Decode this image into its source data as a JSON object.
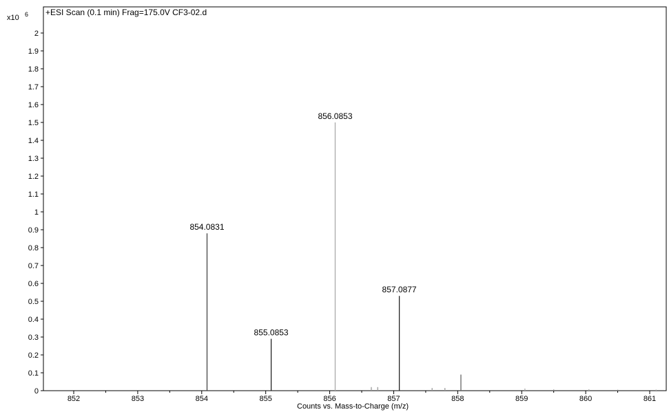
{
  "chart_data": {
    "type": "bar",
    "title": "+ESI Scan (0.1 min) Frag=175.0V CF3-02.d",
    "xlabel": "Counts vs. Mass-to-Charge (m/z)",
    "ylabel": "",
    "y_multiplier": "x10",
    "y_multiplier_exp": "6",
    "xlim": [
      851.5,
      861.4
    ],
    "ylim": [
      0,
      2.05
    ],
    "x_ticks": [
      852,
      853,
      854,
      855,
      856,
      857,
      858,
      859,
      860,
      861
    ],
    "y_ticks": [
      0,
      0.1,
      0.2,
      0.3,
      0.4,
      0.5,
      0.6,
      0.7,
      0.8,
      0.9,
      1,
      1.1,
      1.2,
      1.3,
      1.4,
      1.5,
      1.6,
      1.7,
      1.8,
      1.9,
      2
    ],
    "grid": false,
    "peaks": [
      {
        "mz": 854.0831,
        "value": 0.88,
        "label": "854.0831",
        "color": "#444444"
      },
      {
        "mz": 855.0853,
        "value": 0.29,
        "label": "855.0853",
        "color": "#222222"
      },
      {
        "mz": 856.0853,
        "value": 1.5,
        "label": "856.0853",
        "color": "#aaaaaa"
      },
      {
        "mz": 857.0877,
        "value": 0.53,
        "label": "857.0877",
        "color": "#222222"
      },
      {
        "mz": 858.05,
        "value": 0.09,
        "label": "",
        "color": "#666666"
      },
      {
        "mz": 856.65,
        "value": 0.02,
        "label": "",
        "color": "#999999"
      },
      {
        "mz": 856.75,
        "value": 0.02,
        "label": "",
        "color": "#999999"
      },
      {
        "mz": 857.6,
        "value": 0.015,
        "label": "",
        "color": "#999999"
      },
      {
        "mz": 857.8,
        "value": 0.015,
        "label": "",
        "color": "#999999"
      },
      {
        "mz": 859.05,
        "value": 0.012,
        "label": "",
        "color": "#aaaaaa"
      },
      {
        "mz": 859.5,
        "value": 0.008,
        "label": "",
        "color": "#aaaaaa"
      },
      {
        "mz": 860.05,
        "value": 0.008,
        "label": "",
        "color": "#aaaaaa"
      },
      {
        "mz": 860.5,
        "value": 0.006,
        "label": "",
        "color": "#aaaaaa"
      },
      {
        "mz": 861.1,
        "value": 0.006,
        "label": "",
        "color": "#aaaaaa"
      }
    ]
  }
}
